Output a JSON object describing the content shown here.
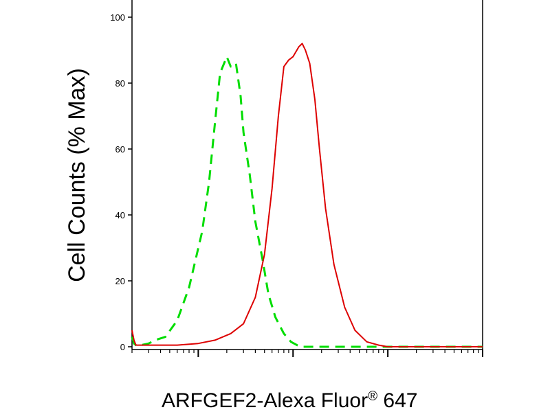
{
  "chart_data": {
    "type": "line",
    "title": "",
    "xlabel_main": "ARFGEF2-Alexa Fluor",
    "xlabel_mark": "®",
    "xlabel_suffix": " 647",
    "ylabel": "Cell Counts (% Max)",
    "xscale": "log",
    "xlim": [
      0.2,
      1000
    ],
    "ylim": [
      0,
      100
    ],
    "yticks": [
      "0",
      "20",
      "40",
      "60",
      "80",
      "100"
    ],
    "grid": false,
    "legend": "none",
    "series": [
      {
        "color": "#00dd00",
        "style": "dashed",
        "x": [
          0.2,
          0.21,
          0.22,
          0.25,
          0.3,
          0.35,
          0.45,
          0.6,
          0.8,
          1.1,
          1.3,
          1.5,
          1.7,
          2.0,
          2.2,
          2.5,
          2.8,
          3.0,
          3.5,
          4.0,
          4.8,
          5.5,
          6.5,
          8.0,
          9.5,
          11.0,
          12.0,
          14.0,
          18.0,
          25.0,
          40.0,
          100.0,
          1000.0
        ],
        "y": [
          3,
          1,
          0.5,
          0.5,
          1,
          2,
          3,
          8,
          18,
          35,
          50,
          68,
          83,
          88,
          85,
          86,
          76,
          65,
          52,
          38,
          26,
          16,
          9,
          4,
          1.5,
          0.5,
          0,
          0,
          0,
          0,
          0,
          0,
          0
        ]
      },
      {
        "color": "#dd0000",
        "style": "solid",
        "x": [
          0.2,
          0.21,
          0.22,
          0.25,
          0.3,
          0.4,
          0.6,
          1.0,
          1.5,
          2.2,
          3.0,
          4.0,
          5.0,
          6.0,
          7.0,
          8.0,
          9.0,
          10.0,
          11.5,
          12.5,
          13.5,
          15.0,
          17.0,
          19.0,
          22.0,
          27.0,
          35.0,
          45.0,
          60.0,
          80.0,
          100.0,
          200.0,
          1000.0
        ],
        "y": [
          5,
          2,
          0.5,
          0.5,
          0.5,
          0.5,
          0.5,
          1,
          2,
          4,
          7,
          15,
          28,
          48,
          70,
          85,
          87,
          88,
          91,
          92,
          90,
          86,
          75,
          60,
          42,
          25,
          12,
          5,
          1.5,
          0.5,
          0,
          0,
          0
        ]
      }
    ]
  }
}
